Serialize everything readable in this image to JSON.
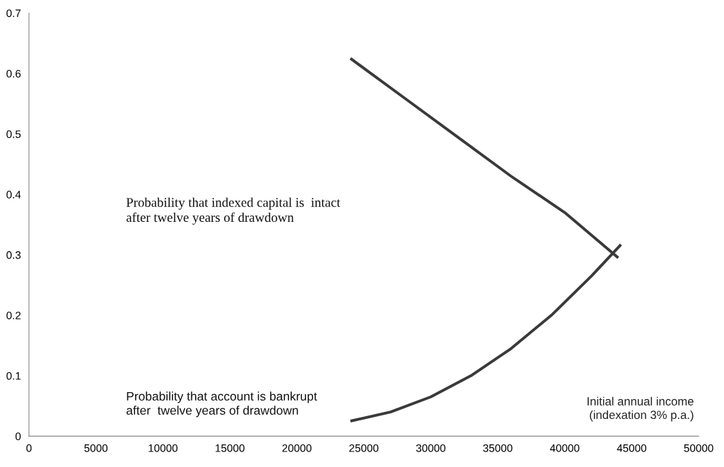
{
  "chart_data": {
    "type": "line",
    "xlabel": "Initial annual income\n(indexation 3% p.a.)",
    "series": [
      {
        "color": "#3a3a3a",
        "x": [
          24000,
          28000,
          32000,
          36000,
          40000,
          44000
        ],
        "values": [
          0.625,
          0.56,
          0.495,
          0.43,
          0.37,
          0.295
        ]
      },
      {
        "color": "#3a3a3a",
        "x": [
          24000,
          27000,
          30000,
          33000,
          36000,
          39000,
          42000,
          44200
        ],
        "values": [
          0.025,
          0.04,
          0.065,
          0.1,
          0.145,
          0.2,
          0.265,
          0.317
        ]
      }
    ],
    "annotations": [
      "Probability that indexed capital is  intact\nafter twelve years of drawdown",
      "Probability that account is bankrupt\nafter  twelve years of drawdown"
    ],
    "xlim": [
      0,
      50000
    ],
    "xticks": [
      0,
      5000,
      10000,
      15000,
      20000,
      25000,
      30000,
      35000,
      40000,
      45000,
      50000
    ],
    "ylim": [
      0,
      0.7
    ],
    "yticks": [
      0,
      0.1,
      0.2,
      0.3,
      0.4,
      0.5,
      0.6,
      0.7
    ],
    "grid": false,
    "legend": false,
    "marker": "none",
    "line_style": "solid"
  }
}
